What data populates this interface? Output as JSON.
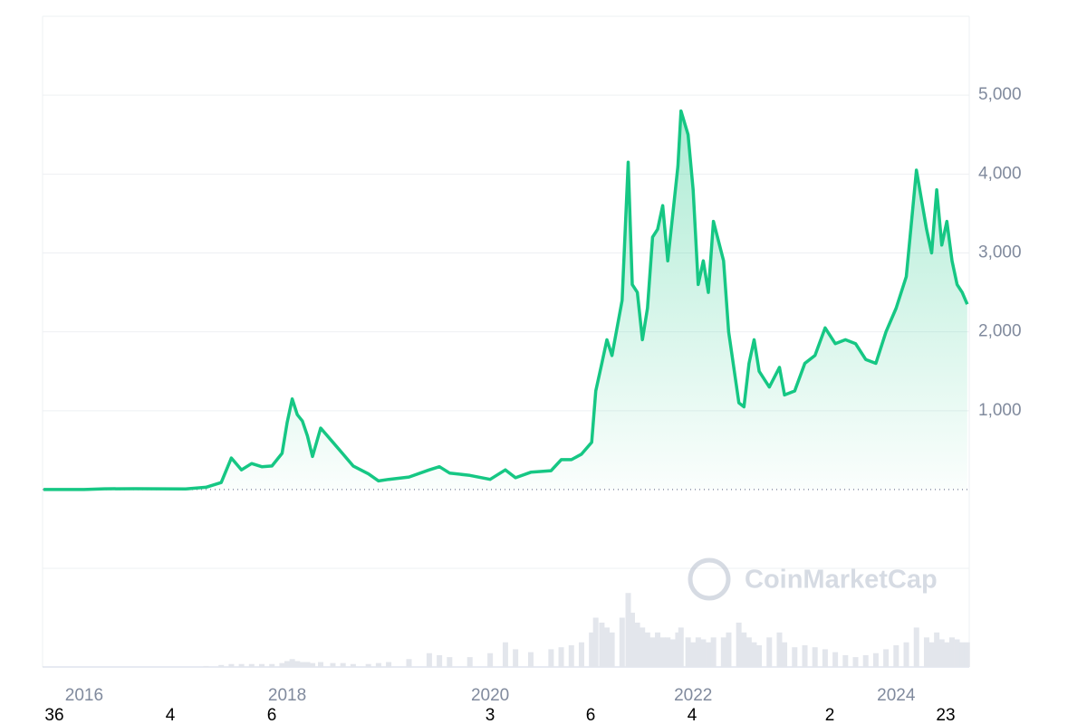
{
  "chart_data": {
    "type": "line",
    "x": [
      2015.6,
      2016.0,
      2016.2,
      2016.5,
      2017.0,
      2017.2,
      2017.35,
      2017.45,
      2017.55,
      2017.65,
      2017.75,
      2017.85,
      2017.95,
      2018.0,
      2018.05,
      2018.1,
      2018.15,
      2018.2,
      2018.25,
      2018.33,
      2018.45,
      2018.55,
      2018.65,
      2018.8,
      2018.9,
      2019.0,
      2019.2,
      2019.4,
      2019.5,
      2019.6,
      2019.8,
      2020.0,
      2020.15,
      2020.25,
      2020.4,
      2020.6,
      2020.7,
      2020.8,
      2020.9,
      2021.0,
      2021.04,
      2021.1,
      2021.15,
      2021.2,
      2021.3,
      2021.36,
      2021.4,
      2021.45,
      2021.5,
      2021.55,
      2021.6,
      2021.65,
      2021.7,
      2021.75,
      2021.8,
      2021.85,
      2021.88,
      2021.95,
      2022.0,
      2022.05,
      2022.1,
      2022.15,
      2022.2,
      2022.3,
      2022.35,
      2022.45,
      2022.5,
      2022.55,
      2022.6,
      2022.65,
      2022.75,
      2022.85,
      2022.9,
      2023.0,
      2023.1,
      2023.2,
      2023.3,
      2023.4,
      2023.5,
      2023.6,
      2023.7,
      2023.8,
      2023.9,
      2024.0,
      2024.1,
      2024.2,
      2024.3,
      2024.35,
      2024.4,
      2024.45,
      2024.5,
      2024.55,
      2024.6,
      2024.65,
      2024.7
    ],
    "series": [
      {
        "color": "#16c784",
        "values": [
          1,
          1,
          10,
          12,
          8,
          30,
          90,
          400,
          250,
          330,
          290,
          300,
          460,
          850,
          1150,
          950,
          870,
          680,
          420,
          780,
          600,
          450,
          300,
          200,
          110,
          130,
          160,
          250,
          290,
          210,
          180,
          130,
          250,
          150,
          220,
          240,
          380,
          380,
          450,
          600,
          1250,
          1600,
          1900,
          1700,
          2400,
          4150,
          2600,
          2500,
          1900,
          2300,
          3200,
          3300,
          3600,
          2900,
          3500,
          4100,
          4800,
          4500,
          3800,
          2600,
          2900,
          2500,
          3400,
          2900,
          2000,
          1100,
          1050,
          1600,
          1900,
          1500,
          1300,
          1550,
          1200,
          1250,
          1600,
          1700,
          2050,
          1850,
          1900,
          1850,
          1650,
          1600,
          2000,
          2300,
          2700,
          4050,
          3300,
          3000,
          3800,
          3100,
          3400,
          2900,
          2600,
          2500,
          2350
        ]
      }
    ],
    "volume": {
      "color": "#e3e6ec",
      "ylim": [
        0,
        100
      ],
      "values": [
        0,
        0,
        0,
        0,
        0,
        1,
        2,
        3,
        3,
        3,
        3,
        3,
        4,
        6,
        8,
        6,
        5,
        5,
        4,
        5,
        4,
        4,
        3,
        3,
        4,
        5,
        8,
        14,
        12,
        10,
        10,
        14,
        25,
        18,
        15,
        18,
        20,
        22,
        25,
        35,
        50,
        45,
        40,
        35,
        50,
        75,
        55,
        45,
        40,
        35,
        30,
        35,
        30,
        30,
        28,
        35,
        40,
        30,
        25,
        30,
        28,
        25,
        30,
        30,
        35,
        45,
        35,
        30,
        25,
        22,
        30,
        35,
        25,
        20,
        22,
        20,
        18,
        15,
        12,
        10,
        12,
        14,
        18,
        22,
        25,
        40,
        30,
        25,
        35,
        28,
        25,
        30,
        28,
        25,
        25
      ]
    },
    "xlim": [
      2015.59,
      2024.72
    ],
    "xticks": [
      2016,
      2018,
      2020,
      2022,
      2024
    ],
    "ylim": [
      0,
      6000
    ],
    "yticks": [
      {
        "value": 1000,
        "label": "1,000"
      },
      {
        "value": 2000,
        "label": "2,000"
      },
      {
        "value": 3000,
        "label": "3,000"
      },
      {
        "value": 4000,
        "label": "4,000"
      },
      {
        "value": 5000,
        "label": "5,000"
      }
    ],
    "grid": true,
    "watermark": "CoinMarketCap",
    "footer_labels": [
      "36",
      "4",
      "6",
      "3",
      "6",
      "4",
      "2",
      "23"
    ]
  }
}
